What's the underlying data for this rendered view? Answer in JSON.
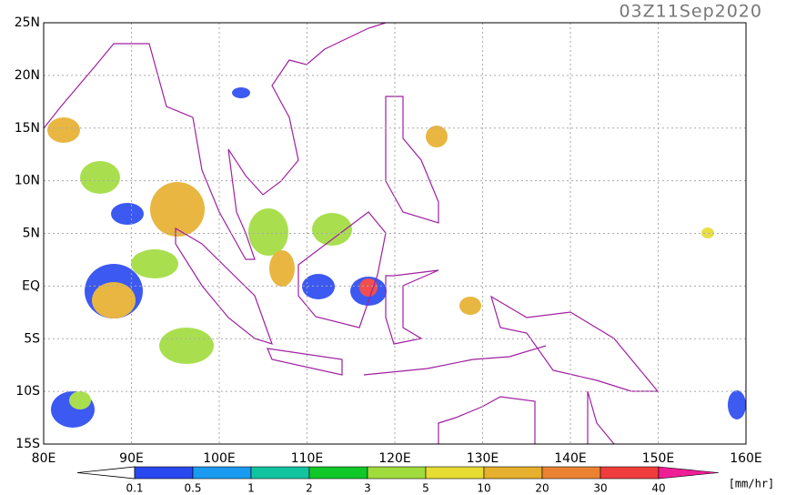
{
  "timestamp": "03Z11Sep2020",
  "lat_labels": [
    "25N",
    "20N",
    "15N",
    "10N",
    "5N",
    "EQ",
    "5S",
    "10S",
    "15S"
  ],
  "lon_labels": [
    "80E",
    "90E",
    "100E",
    "110E",
    "120E",
    "130E",
    "140E",
    "150E",
    "160E"
  ],
  "colorbar": {
    "unit": "[mm/hr]",
    "levels": [
      0.1,
      0.5,
      1,
      2,
      3,
      5,
      10,
      20,
      30,
      40
    ],
    "colors": [
      "#2848f0",
      "#1a9af0",
      "#12c3a0",
      "#10c828",
      "#a0dc3c",
      "#e6dc32",
      "#e6af2d",
      "#eb8232",
      "#f03c3c",
      "#f01e96"
    ]
  }
}
